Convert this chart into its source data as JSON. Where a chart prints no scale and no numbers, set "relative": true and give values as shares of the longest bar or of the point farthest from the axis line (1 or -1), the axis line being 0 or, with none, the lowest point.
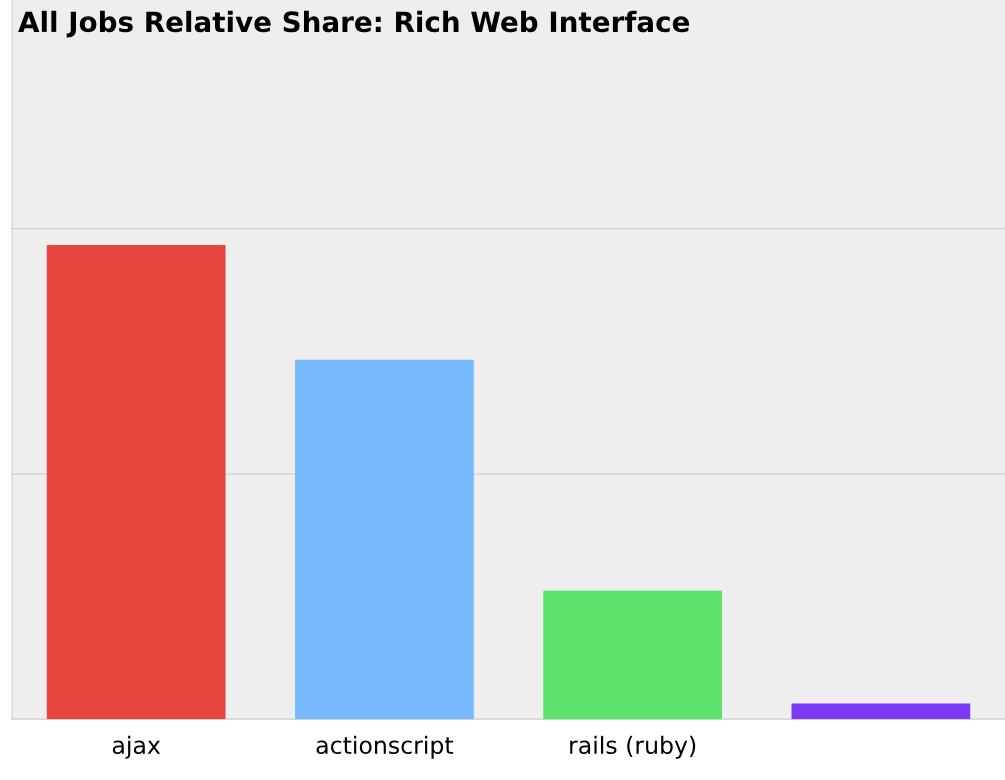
{
  "chart_data": {
    "type": "bar",
    "title": "All Jobs Relative Share: Rich Web Interface",
    "categories": [
      "ajax",
      "actionscript",
      "rails (ruby)",
      null
    ],
    "values": [
      1,
      0.758,
      0.271,
      0.033
    ],
    "colors": [
      "#e64540",
      "#76b9fd",
      "#5ce26b",
      "#7b3af7"
    ],
    "relative": true,
    "ref_lines": [
      {
        "axis": "y",
        "value": 0.517,
        "color": "#d4d4d4"
      },
      {
        "axis": "y",
        "value": 1.035,
        "color": "#d4d4d4"
      }
    ]
  }
}
